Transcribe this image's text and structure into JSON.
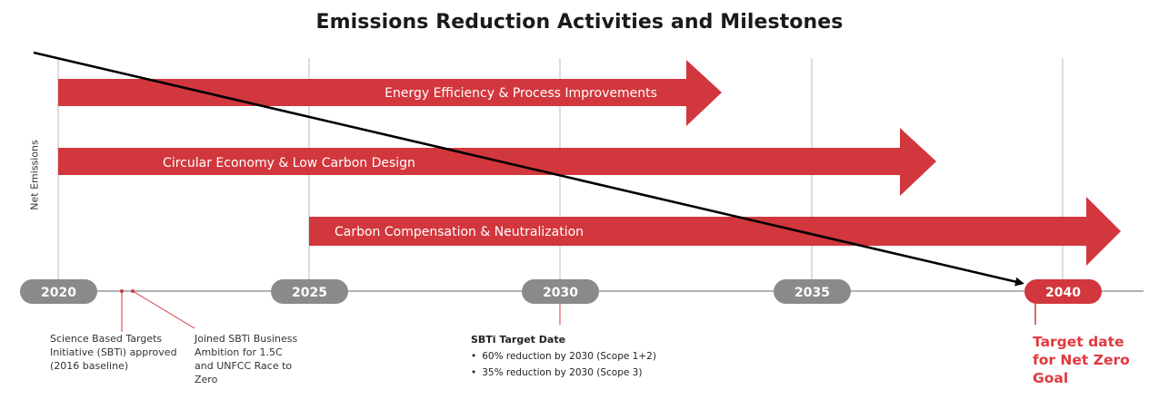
{
  "title": "Emissions Reduction Activities and Milestones",
  "y_axis_label": "Net Emissions",
  "years": [
    "2020",
    "2025",
    "2030",
    "2035",
    "2040"
  ],
  "activities": [
    {
      "label": "Energy Efficiency & Process Improvements"
    },
    {
      "label": "Circular Economy & Low Carbon Design"
    },
    {
      "label": "Carbon Compensation & Neutralization"
    }
  ],
  "milestones": {
    "sbti_approved": "Science Based Targets Initiative (SBTi) approved (2016 baseline)",
    "sbti_joined": "Joined SBTi Business Ambition for 1.5C and UNFCC Race to Zero",
    "target_heading": "SBTi Target Date",
    "target_items": [
      "60% reduction by 2030 (Scope 1+2)",
      "35% reduction by 2030 (Scope 3)"
    ],
    "net_zero": "Target date for Net Zero Goal"
  },
  "colors": {
    "arrow": "#d1373d",
    "year_pill": "#8a8a8a",
    "final_pill": "#d1373d",
    "accent_text": "#e0393e",
    "line": "#000000"
  }
}
